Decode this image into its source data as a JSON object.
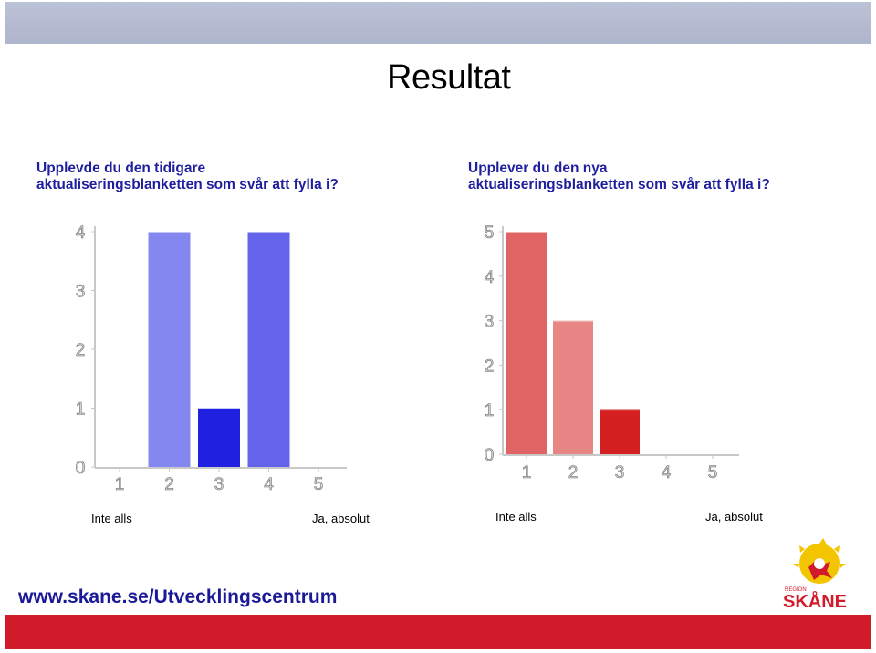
{
  "slide": {
    "title": "Resultat",
    "footer_url": "www.skane.se/Utvecklingscentrum",
    "logo_small": "REGION",
    "logo_text": "SKÅNE"
  },
  "colors": {
    "band": "#b4bbd0",
    "bottom_band": "#d11a2a",
    "title_text": "#1f1f9e"
  },
  "chart_data": [
    {
      "type": "bar",
      "title": "Upplevde du den tidigare\naktualiseringsblanketten som svår att fylla i?",
      "categories": [
        "1",
        "2",
        "3",
        "4",
        "5"
      ],
      "values": [
        0,
        4,
        1,
        4,
        0
      ],
      "ylim": [
        0,
        4
      ],
      "yticks": [
        "0",
        "1",
        "2",
        "3",
        "4"
      ],
      "bar_colors": [
        "#8587f0",
        "#8587f0",
        "#2020e0",
        "#6464ea",
        "#6464ea"
      ],
      "scale_low": "Inte alls",
      "scale_high": "Ja, absolut"
    },
    {
      "type": "bar",
      "title": "Upplever du den nya\naktualiseringsblanketten som svår att fylla i?",
      "categories": [
        "1",
        "2",
        "3",
        "4",
        "5"
      ],
      "values": [
        5,
        3,
        1,
        0,
        0
      ],
      "ylim": [
        0,
        5
      ],
      "yticks": [
        "0",
        "1",
        "2",
        "3",
        "4",
        "5"
      ],
      "bar_colors": [
        "#e06464",
        "#e88585",
        "#d42020",
        "#e06464",
        "#e06464"
      ],
      "scale_low": "Inte alls",
      "scale_high": "Ja, absolut"
    }
  ]
}
